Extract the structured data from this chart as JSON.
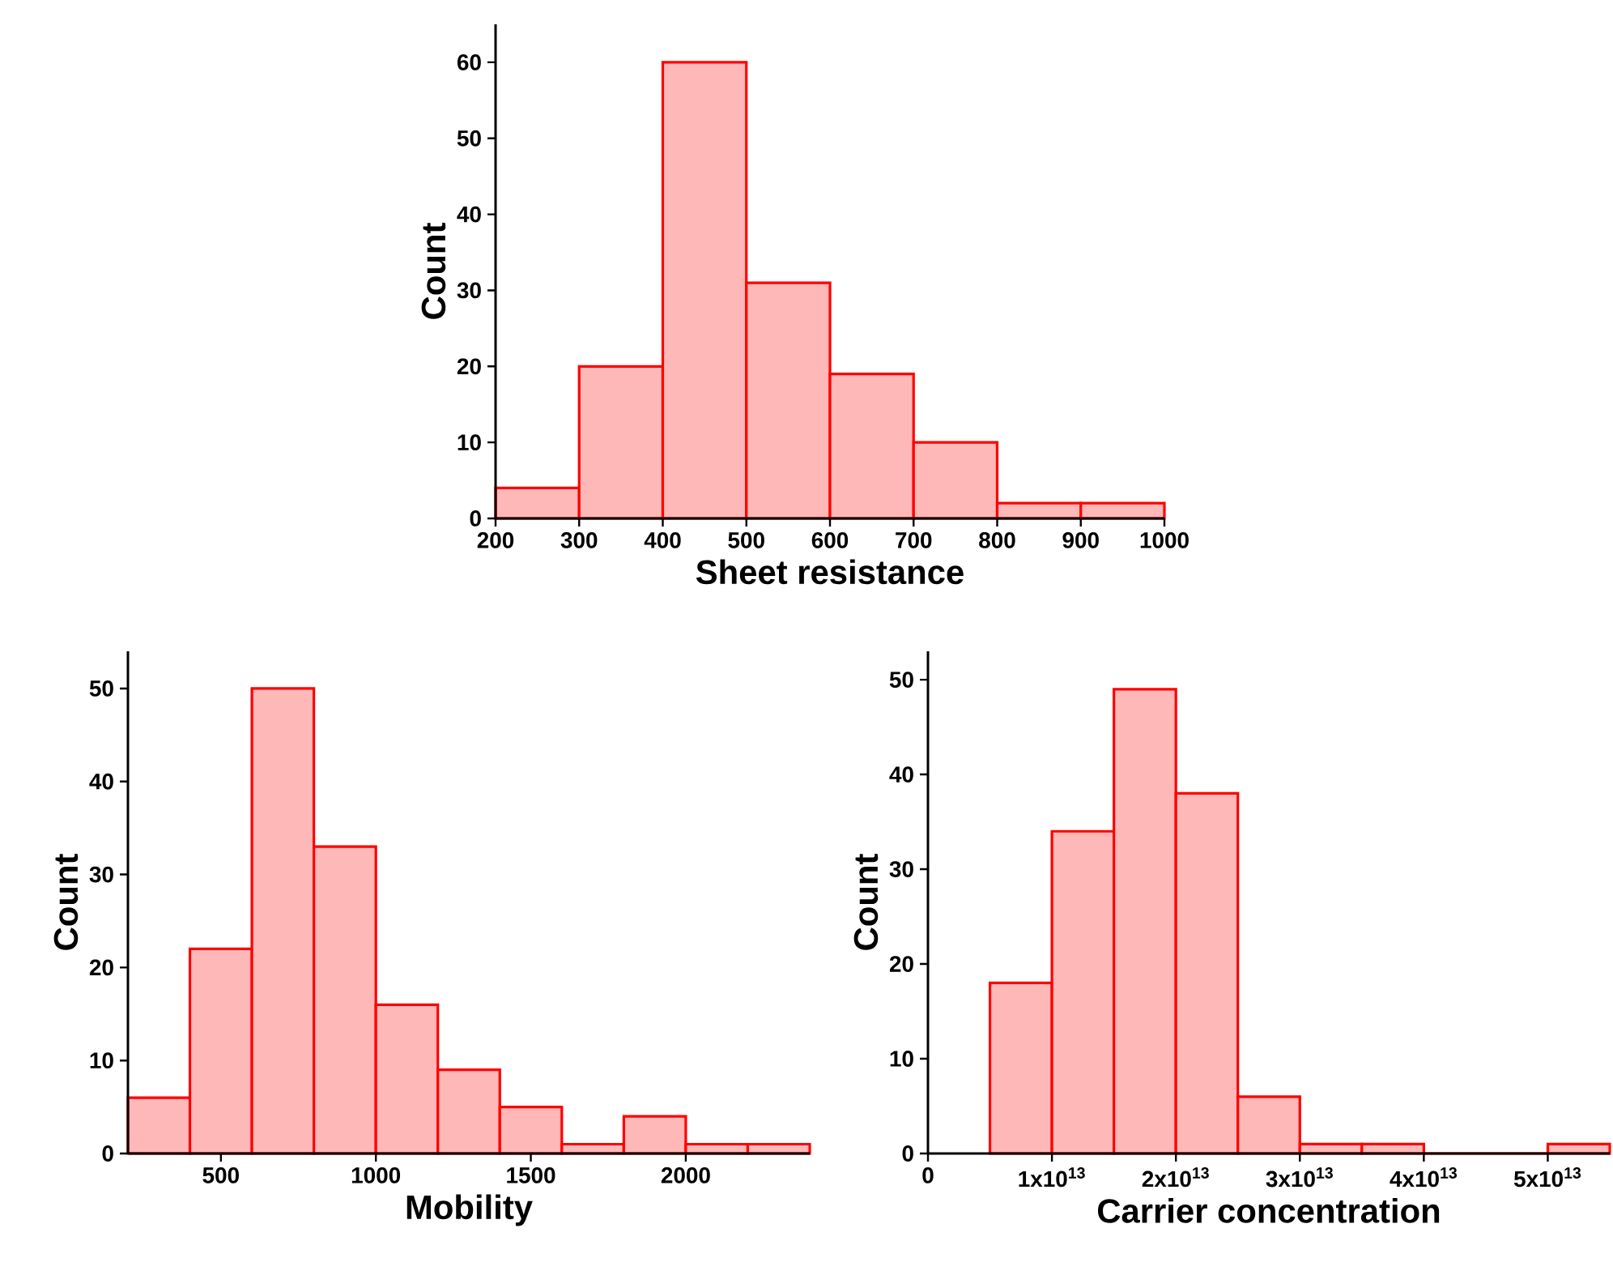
{
  "chart_data": [
    {
      "type": "histogram",
      "xlabel": "Sheet resistance",
      "ylabel": "Count",
      "color": "#ff0000",
      "bins": [
        200,
        300,
        400,
        500,
        600,
        700,
        800,
        900,
        1000
      ],
      "values": [
        4,
        20,
        60,
        31,
        19,
        10,
        2,
        2
      ],
      "xlim": [
        200,
        1000
      ],
      "ylim": [
        0,
        65
      ],
      "xticks": [
        200,
        300,
        400,
        500,
        600,
        700,
        800,
        900,
        1000
      ],
      "yticks": [
        0,
        10,
        20,
        30,
        40,
        50,
        60
      ]
    },
    {
      "type": "histogram",
      "xlabel": "Mobility",
      "ylabel": "Count",
      "color": "#ff0000",
      "bins": [
        200,
        400,
        600,
        800,
        1000,
        1200,
        1400,
        1600,
        1800,
        2000,
        2200,
        2400
      ],
      "values": [
        6,
        22,
        50,
        33,
        16,
        9,
        5,
        1,
        4,
        1,
        1
      ],
      "xlim": [
        200,
        2400
      ],
      "ylim": [
        0,
        54
      ],
      "xticks": [
        500,
        1000,
        1500,
        2000
      ],
      "yticks": [
        0,
        10,
        20,
        30,
        40,
        50
      ]
    },
    {
      "type": "histogram",
      "xlabel": "Carrier concentration",
      "ylabel": "Count",
      "color": "#ff0000",
      "bins": [
        5000000000000.0,
        10000000000000.0,
        15000000000000.0,
        20000000000000.0,
        25000000000000.0,
        30000000000000.0,
        35000000000000.0,
        40000000000000.0,
        45000000000000.0,
        50000000000000.0,
        55000000000000.0
      ],
      "values": [
        18,
        34,
        49,
        38,
        6,
        1,
        1,
        0,
        0,
        1
      ],
      "xlim": [
        0,
        55000000000000.0
      ],
      "ylim": [
        0,
        53
      ],
      "xticks": [
        0,
        {
          "value": 10000000000000.0,
          "label": "1x10$^{13}$"
        },
        {
          "value": 20000000000000.0,
          "label": "2x10$^{13}$"
        },
        {
          "value": 30000000000000.0,
          "label": "3x10$^{13}$"
        },
        {
          "value": 40000000000000.0,
          "label": "4x10$^{13}$"
        },
        {
          "value": 50000000000000.0,
          "label": "5x10$^{13}$"
        }
      ],
      "yticks": [
        0,
        10,
        20,
        30,
        40,
        50
      ]
    }
  ]
}
